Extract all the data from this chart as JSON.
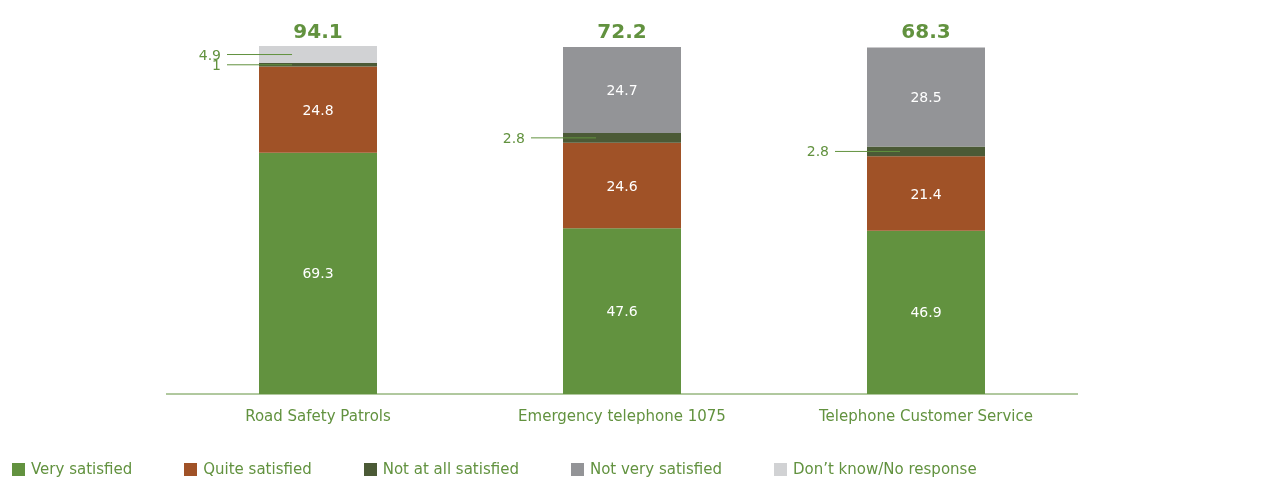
{
  "chart_data": {
    "type": "bar",
    "stacked": true,
    "categories": [
      "Road Safety Patrols",
      "Emergency telephone 1075",
      "Telephone Customer Service"
    ],
    "series": [
      {
        "name": "Very satisfied",
        "color": "#62923f",
        "values": [
          69.3,
          47.6,
          46.9
        ]
      },
      {
        "name": "Quite satisfied",
        "color": "#a05227",
        "values": [
          24.8,
          24.6,
          21.4
        ]
      },
      {
        "name": "Not at all satisfied",
        "color": "#4b5a36",
        "values": [
          1,
          2.8,
          2.8
        ]
      },
      {
        "name": "Not very satisfied",
        "color": "#939497",
        "values": [
          null,
          24.7,
          28.5
        ]
      },
      {
        "name": "Don’t know/No response",
        "color": "#d1d2d4",
        "values": [
          4.9,
          null,
          null
        ]
      }
    ],
    "data_labels": true,
    "annotations": [
      "94.1",
      "72.2",
      "68.3"
    ],
    "legend": "bottom left",
    "grid": false
  }
}
